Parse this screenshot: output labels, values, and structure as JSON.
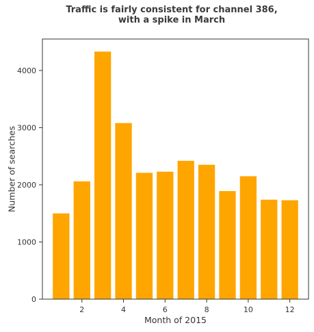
{
  "chart_data": {
    "type": "bar",
    "title": "Traffic is fairly consistent for channel 386,\nwith a spike in March",
    "xlabel": "Month of 2015",
    "ylabel": "Number of searches",
    "x": [
      1,
      2,
      3,
      4,
      5,
      6,
      7,
      8,
      9,
      10,
      11,
      12
    ],
    "values": [
      1500,
      2060,
      4330,
      3080,
      2210,
      2230,
      2420,
      2350,
      1890,
      2150,
      1740,
      1730
    ],
    "xlim": [
      0.1,
      12.9
    ],
    "ylim": [
      0,
      4550
    ],
    "xticks": [
      2,
      4,
      6,
      8,
      10,
      12
    ],
    "yticks": [
      0,
      1000,
      2000,
      3000,
      4000
    ],
    "bar_color": "#ffa500",
    "grid": false,
    "legend": false
  }
}
